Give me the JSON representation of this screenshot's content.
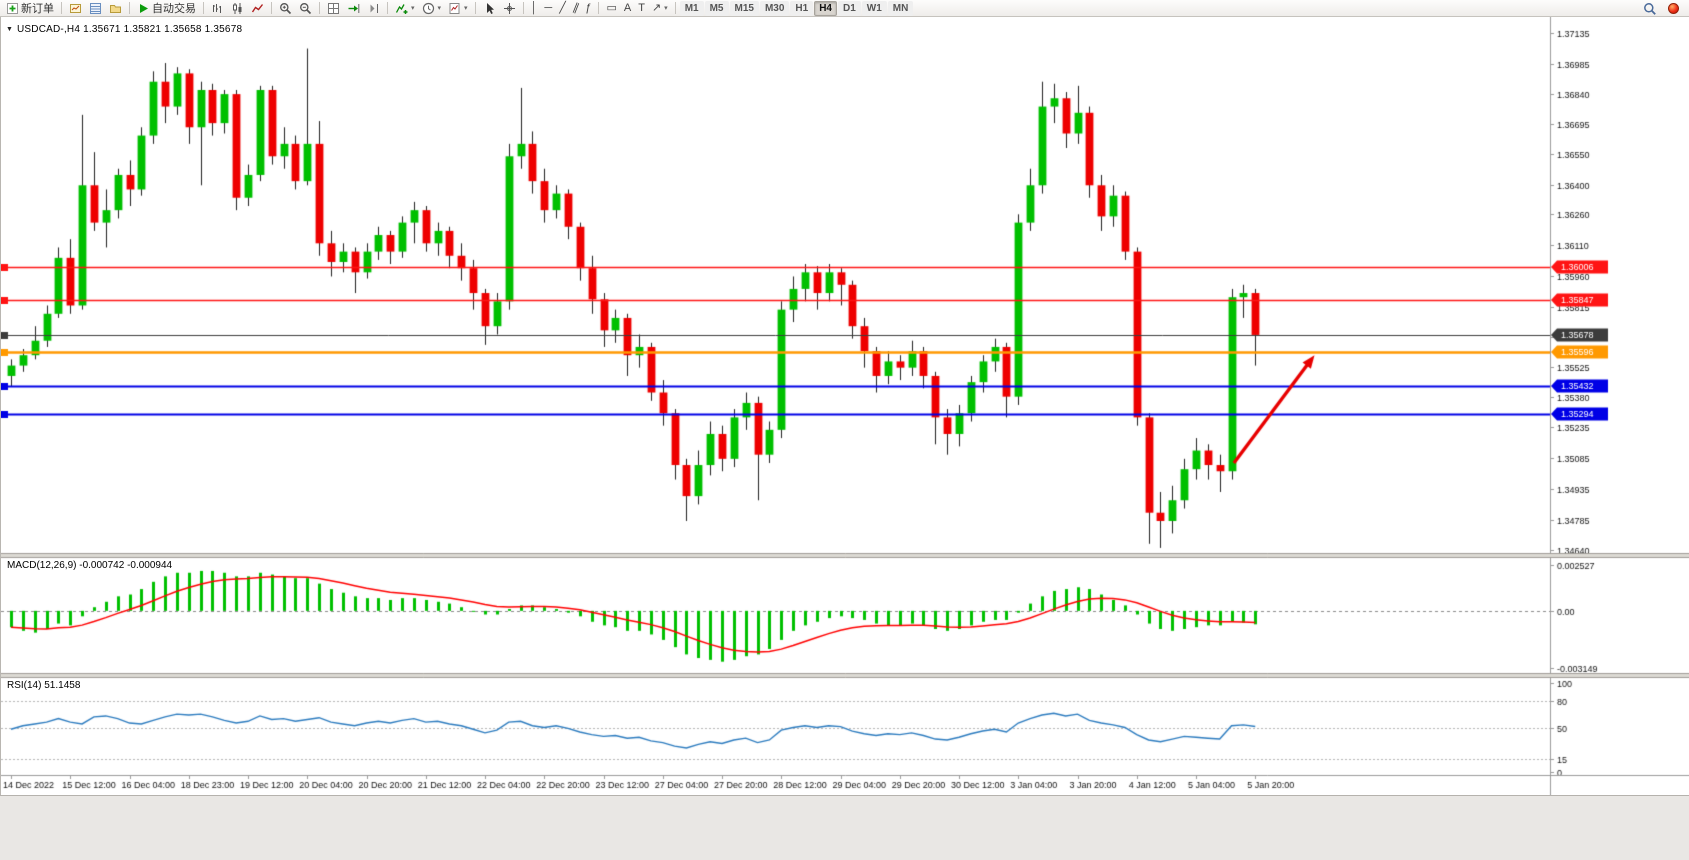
{
  "toolbar": {
    "groups": [
      [
        {
          "name": "new-order-button",
          "icon": "neworder",
          "label": "新订单"
        }
      ],
      [
        {
          "name": "market-watch-button",
          "icon": "marketwatch"
        },
        {
          "name": "data-window-button",
          "icon": "datawindow"
        },
        {
          "name": "navigator-button",
          "icon": "navigator"
        }
      ],
      [
        {
          "name": "autotrading-button",
          "icon": "play",
          "label": "自动交易"
        }
      ],
      [
        {
          "name": "bar-chart-button",
          "icon": "barchart"
        },
        {
          "name": "candlestick-chart-button",
          "icon": "candles"
        },
        {
          "name": "line-chart-button",
          "icon": "linechart"
        }
      ],
      [
        {
          "name": "zoom-in-button",
          "icon": "zoomin"
        },
        {
          "name": "zoom-out-button",
          "icon": "zoomout"
        }
      ],
      [
        {
          "name": "tile-windows-button",
          "icon": "tile"
        },
        {
          "name": "auto-scroll-button",
          "icon": "autoscroll"
        },
        {
          "name": "chart-shift-button",
          "icon": "chartshift"
        }
      ],
      [
        {
          "name": "indicators-button",
          "icon": "indicators",
          "caret": true
        },
        {
          "name": "periods-button",
          "icon": "clock",
          "caret": true
        },
        {
          "name": "templates-button",
          "icon": "template",
          "caret": true
        }
      ],
      [
        {
          "name": "cursor-button",
          "icon": "cursor"
        },
        {
          "name": "crosshair-button",
          "icon": "crosshair"
        }
      ],
      [
        {
          "name": "vertical-line-button",
          "glyph": "│"
        },
        {
          "name": "horizontal-line-button",
          "glyph": "─"
        },
        {
          "name": "trendline-button",
          "glyph": "╱"
        },
        {
          "name": "channel-button",
          "glyph": "∥",
          "tilt": true
        },
        {
          "name": "fibonacci-button",
          "glyph": "ƒ"
        }
      ],
      [
        {
          "name": "shapes-button",
          "glyph": "▭"
        },
        {
          "name": "text-tool-button",
          "glyph": "A"
        },
        {
          "name": "text-label-button",
          "glyph": "T"
        },
        {
          "name": "arrows-tool-button",
          "glyph": "↗",
          "caret": true
        }
      ]
    ],
    "timeframes": [
      "M1",
      "M5",
      "M15",
      "M30",
      "H1",
      "H4",
      "D1",
      "W1",
      "MN"
    ],
    "active_timeframe": "H4",
    "right_items": [
      {
        "name": "search-button",
        "icon": "search"
      },
      {
        "name": "community-button",
        "icon": "community"
      }
    ]
  },
  "chart": {
    "title": "USDCAD-,H4 1.35671 1.35821 1.35658 1.35678",
    "symbol": "USDCAD-",
    "period": "H4",
    "collapse_glyph": "▼",
    "ohlc_display": {
      "open": "1.35671",
      "high": "1.35821",
      "low": "1.35658",
      "close": "1.35678"
    },
    "hlines": [
      {
        "price": 1.36006,
        "label": "1.36006",
        "color": "#ff1414",
        "width": 1.6
      },
      {
        "price": 1.35847,
        "label": "1.35847",
        "color": "#ff1414",
        "width": 1.6
      },
      {
        "price": 1.35678,
        "label": "1.35678",
        "color": "#3c3c3c",
        "width": 1
      },
      {
        "price": 1.35596,
        "label": "1.35596",
        "color": "#ff9900",
        "width": 2.4
      },
      {
        "price": 1.35432,
        "label": "1.35432",
        "color": "#0000e6",
        "width": 2
      },
      {
        "price": 1.35294,
        "label": "1.35294",
        "color": "#0000e6",
        "width": 2
      }
    ],
    "annotation_arrow": {
      "from_bar": 103.2,
      "from_price": 1.3506,
      "to_bar": 110,
      "to_price": 1.3558,
      "color": "#e80000"
    }
  },
  "colors": {
    "up_candle": "#00c000",
    "down_candle": "#ee0000",
    "wick": "#202020",
    "macd_hist": "#00c000",
    "macd_signal": "#ff0000",
    "rsi_line": "#2b7bbf",
    "axis_text": "#141414",
    "grid": "#b5b5b5"
  },
  "time_axis": [
    "14 Dec 2022",
    "15 Dec 12:00",
    "16 Dec 04:00",
    "18 Dec 23:00",
    "19 Dec 12:00",
    "20 Dec 04:00",
    "20 Dec 20:00",
    "21 Dec 12:00",
    "22 Dec 04:00",
    "22 Dec 20:00",
    "23 Dec 12:00",
    "27 Dec 04:00",
    "27 Dec 20:00",
    "28 Dec 12:00",
    "29 Dec 04:00",
    "29 Dec 20:00",
    "30 Dec 12:00",
    "3 Jan 04:00",
    "3 Jan 20:00",
    "4 Jan 12:00",
    "5 Jan 04:00",
    "5 Jan 20:00"
  ],
  "chart_data": [
    {
      "type": "candlestick",
      "name": "USDCAD H4",
      "ylim": [
        1.3464,
        1.37135
      ],
      "y_ticks": [
        1.37135,
        1.36985,
        1.3684,
        1.36695,
        1.3655,
        1.364,
        1.3626,
        1.3611,
        1.3596,
        1.35815,
        1.3567,
        1.35525,
        1.3538,
        1.35235,
        1.35085,
        1.34935,
        1.34785,
        1.3464
      ],
      "ohlc": [
        [
          1.3548,
          1.3556,
          1.3543,
          1.3553
        ],
        [
          1.3553,
          1.3561,
          1.355,
          1.3558
        ],
        [
          1.3558,
          1.3572,
          1.3556,
          1.3565
        ],
        [
          1.3565,
          1.3582,
          1.3562,
          1.3578
        ],
        [
          1.3578,
          1.361,
          1.3576,
          1.3605
        ],
        [
          1.3605,
          1.3614,
          1.3578,
          1.3582
        ],
        [
          1.3582,
          1.3674,
          1.358,
          1.364
        ],
        [
          1.364,
          1.3656,
          1.3618,
          1.3622
        ],
        [
          1.3622,
          1.3638,
          1.361,
          1.3628
        ],
        [
          1.3628,
          1.3648,
          1.3624,
          1.3645
        ],
        [
          1.3645,
          1.3652,
          1.363,
          1.3638
        ],
        [
          1.3638,
          1.3668,
          1.3635,
          1.3664
        ],
        [
          1.3664,
          1.3695,
          1.366,
          1.369
        ],
        [
          1.369,
          1.3699,
          1.367,
          1.3678
        ],
        [
          1.3678,
          1.3697,
          1.3674,
          1.3694
        ],
        [
          1.3694,
          1.3696,
          1.366,
          1.3668
        ],
        [
          1.3668,
          1.369,
          1.364,
          1.3686
        ],
        [
          1.3686,
          1.3689,
          1.3664,
          1.367
        ],
        [
          1.367,
          1.3686,
          1.3665,
          1.3684
        ],
        [
          1.3684,
          1.3686,
          1.3628,
          1.3634
        ],
        [
          1.3634,
          1.365,
          1.363,
          1.3645
        ],
        [
          1.3645,
          1.3688,
          1.3642,
          1.3686
        ],
        [
          1.3686,
          1.3688,
          1.365,
          1.3654
        ],
        [
          1.3654,
          1.3668,
          1.3648,
          1.366
        ],
        [
          1.366,
          1.3664,
          1.3638,
          1.3642
        ],
        [
          1.3642,
          1.3706,
          1.364,
          1.366
        ],
        [
          1.366,
          1.3671,
          1.3606,
          1.3612
        ],
        [
          1.3612,
          1.3618,
          1.3596,
          1.3603
        ],
        [
          1.3603,
          1.3612,
          1.3598,
          1.3608
        ],
        [
          1.3608,
          1.361,
          1.3588,
          1.3598
        ],
        [
          1.3598,
          1.3612,
          1.3595,
          1.3608
        ],
        [
          1.3608,
          1.362,
          1.3604,
          1.3616
        ],
        [
          1.3616,
          1.3618,
          1.3602,
          1.3608
        ],
        [
          1.3608,
          1.3625,
          1.3605,
          1.3622
        ],
        [
          1.3622,
          1.3632,
          1.3612,
          1.3628
        ],
        [
          1.3628,
          1.363,
          1.3608,
          1.3612
        ],
        [
          1.3612,
          1.3622,
          1.3606,
          1.3618
        ],
        [
          1.3618,
          1.362,
          1.36,
          1.3606
        ],
        [
          1.3606,
          1.3612,
          1.3594,
          1.36
        ],
        [
          1.36,
          1.3604,
          1.358,
          1.3588
        ],
        [
          1.3588,
          1.359,
          1.3563,
          1.3572
        ],
        [
          1.3572,
          1.3588,
          1.3568,
          1.3584
        ],
        [
          1.3584,
          1.366,
          1.358,
          1.3654
        ],
        [
          1.3654,
          1.3687,
          1.3648,
          1.366
        ],
        [
          1.366,
          1.3666,
          1.3636,
          1.3642
        ],
        [
          1.3642,
          1.3648,
          1.3622,
          1.3628
        ],
        [
          1.3628,
          1.364,
          1.3624,
          1.3636
        ],
        [
          1.3636,
          1.3638,
          1.3614,
          1.362
        ],
        [
          1.362,
          1.3622,
          1.3594,
          1.36
        ],
        [
          1.36,
          1.3606,
          1.3578,
          1.3585
        ],
        [
          1.3585,
          1.3588,
          1.3562,
          1.357
        ],
        [
          1.357,
          1.358,
          1.3564,
          1.3576
        ],
        [
          1.3576,
          1.3578,
          1.3548,
          1.3558
        ],
        [
          1.3558,
          1.3568,
          1.3552,
          1.3562
        ],
        [
          1.3562,
          1.3564,
          1.3536,
          1.354
        ],
        [
          1.354,
          1.3546,
          1.3524,
          1.353
        ],
        [
          1.353,
          1.3532,
          1.3498,
          1.3505
        ],
        [
          1.3505,
          1.3508,
          1.3478,
          1.349
        ],
        [
          1.349,
          1.3512,
          1.3486,
          1.3505
        ],
        [
          1.3505,
          1.3526,
          1.35,
          1.352
        ],
        [
          1.352,
          1.3524,
          1.3502,
          1.3508
        ],
        [
          1.3508,
          1.3532,
          1.3504,
          1.3528
        ],
        [
          1.3528,
          1.354,
          1.3522,
          1.3535
        ],
        [
          1.3535,
          1.3538,
          1.3488,
          1.351
        ],
        [
          1.351,
          1.3526,
          1.3506,
          1.3522
        ],
        [
          1.3522,
          1.3584,
          1.3518,
          1.358
        ],
        [
          1.358,
          1.3596,
          1.3574,
          1.359
        ],
        [
          1.359,
          1.3602,
          1.3584,
          1.3598
        ],
        [
          1.3598,
          1.3601,
          1.358,
          1.3588
        ],
        [
          1.3588,
          1.3602,
          1.3584,
          1.3598
        ],
        [
          1.3598,
          1.36,
          1.3582,
          1.3592
        ],
        [
          1.3592,
          1.3594,
          1.3566,
          1.3572
        ],
        [
          1.3572,
          1.3576,
          1.3552,
          1.356
        ],
        [
          1.356,
          1.3562,
          1.354,
          1.3548
        ],
        [
          1.3548,
          1.356,
          1.3544,
          1.3555
        ],
        [
          1.3555,
          1.3558,
          1.3546,
          1.3552
        ],
        [
          1.3552,
          1.3565,
          1.3548,
          1.356
        ],
        [
          1.356,
          1.3562,
          1.3542,
          1.3548
        ],
        [
          1.3548,
          1.355,
          1.3515,
          1.3528
        ],
        [
          1.3528,
          1.3532,
          1.351,
          1.352
        ],
        [
          1.352,
          1.3534,
          1.3514,
          1.353
        ],
        [
          1.353,
          1.3548,
          1.3526,
          1.3545
        ],
        [
          1.3545,
          1.3558,
          1.354,
          1.3555
        ],
        [
          1.3555,
          1.3566,
          1.355,
          1.3562
        ],
        [
          1.3562,
          1.3564,
          1.3528,
          1.3538
        ],
        [
          1.3538,
          1.3626,
          1.3534,
          1.3622
        ],
        [
          1.3622,
          1.3648,
          1.3618,
          1.364
        ],
        [
          1.364,
          1.369,
          1.3636,
          1.3678
        ],
        [
          1.3678,
          1.3689,
          1.367,
          1.3682
        ],
        [
          1.3682,
          1.3685,
          1.3658,
          1.3665
        ],
        [
          1.3665,
          1.3688,
          1.366,
          1.3675
        ],
        [
          1.3675,
          1.3678,
          1.3634,
          1.364
        ],
        [
          1.364,
          1.3645,
          1.3618,
          1.3625
        ],
        [
          1.3625,
          1.364,
          1.362,
          1.3635
        ],
        [
          1.3635,
          1.3637,
          1.3604,
          1.3608
        ],
        [
          1.3608,
          1.361,
          1.3524,
          1.3528
        ],
        [
          1.3528,
          1.353,
          1.3467,
          1.3482
        ],
        [
          1.3482,
          1.3492,
          1.3465,
          1.3478
        ],
        [
          1.3478,
          1.3495,
          1.3472,
          1.3488
        ],
        [
          1.3488,
          1.3508,
          1.3484,
          1.3503
        ],
        [
          1.3503,
          1.3518,
          1.3498,
          1.3512
        ],
        [
          1.3512,
          1.3515,
          1.3498,
          1.3505
        ],
        [
          1.3505,
          1.351,
          1.3492,
          1.3502
        ],
        [
          1.3502,
          1.359,
          1.3498,
          1.3586
        ],
        [
          1.3586,
          1.3592,
          1.3576,
          1.3588
        ],
        [
          1.3588,
          1.359,
          1.3553,
          1.35678
        ]
      ]
    },
    {
      "type": "bar",
      "name": "MACD",
      "label": "MACD(12,26,9) -0.000742 -0.000944",
      "macd_value": -0.000742,
      "signal_value": -0.000944,
      "ylim": [
        -0.003149,
        0.002527
      ],
      "y_ticks": [
        {
          "v": 0.002527,
          "label": "0.002527"
        },
        {
          "v": 0,
          "label": "0.00"
        },
        {
          "v": -0.003149,
          "label": "-0.003149"
        }
      ],
      "values": [
        -0.0009,
        -0.0011,
        -0.0012,
        -0.001,
        -0.0007,
        -0.0008,
        -0.0003,
        0.0002,
        0.0005,
        0.0008,
        0.0009,
        0.0012,
        0.0016,
        0.0019,
        0.0021,
        0.0021,
        0.0022,
        0.0022,
        0.0021,
        0.0019,
        0.0019,
        0.0021,
        0.002,
        0.0019,
        0.0018,
        0.0018,
        0.0015,
        0.0012,
        0.001,
        0.0008,
        0.0007,
        0.0007,
        0.0006,
        0.0007,
        0.0007,
        0.0006,
        0.0005,
        0.0004,
        0.0002,
        0.0,
        -0.0002,
        -0.0002,
        0.0001,
        0.0003,
        0.0003,
        0.0002,
        0.0001,
        -0.0001,
        -0.0003,
        -0.0006,
        -0.0008,
        -0.0009,
        -0.0011,
        -0.0011,
        -0.0013,
        -0.0016,
        -0.002,
        -0.0024,
        -0.0026,
        -0.0027,
        -0.0028,
        -0.0027,
        -0.0025,
        -0.0024,
        -0.0021,
        -0.0016,
        -0.0011,
        -0.0008,
        -0.0006,
        -0.0004,
        -0.0003,
        -0.0004,
        -0.0005,
        -0.0007,
        -0.0008,
        -0.0008,
        -0.0007,
        -0.0008,
        -0.001,
        -0.0011,
        -0.001,
        -0.0008,
        -0.0006,
        -0.0005,
        -0.0005,
        -0.0001,
        0.0004,
        0.0008,
        0.0011,
        0.0012,
        0.0013,
        0.0012,
        0.0009,
        0.0006,
        0.0003,
        -0.0002,
        -0.0007,
        -0.001,
        -0.0011,
        -0.001,
        -0.0009,
        -0.0008,
        -0.0008,
        -0.0006,
        -0.00065,
        -0.000742
      ]
    },
    {
      "type": "line",
      "name": "RSI",
      "label": "RSI(14) 51.1458",
      "value": 51.1458,
      "ylim": [
        0,
        100
      ],
      "levels": [
        80,
        50,
        15
      ],
      "y_ticks": [
        {
          "v": 100,
          "label": "100"
        },
        {
          "v": 80,
          "label": "80"
        },
        {
          "v": 50,
          "label": "50"
        },
        {
          "v": 15,
          "label": "15"
        },
        {
          "v": 0,
          "label": "0"
        }
      ],
      "values": [
        48,
        52,
        54,
        56,
        60,
        56,
        54,
        62,
        63,
        60,
        55,
        54,
        58,
        62,
        65,
        64,
        65,
        62,
        58,
        55,
        57,
        63,
        59,
        60,
        57,
        59,
        61,
        56,
        54,
        52,
        55,
        57,
        55,
        58,
        60,
        56,
        57,
        54,
        52,
        48,
        44,
        47,
        56,
        57,
        52,
        50,
        52,
        49,
        45,
        42,
        40,
        41,
        38,
        39,
        35,
        33,
        29,
        27,
        31,
        34,
        32,
        36,
        38,
        33,
        36,
        47,
        50,
        52,
        50,
        52,
        51,
        46,
        43,
        41,
        43,
        42,
        44,
        41,
        37,
        36,
        39,
        43,
        46,
        48,
        45,
        55,
        60,
        64,
        66,
        63,
        65,
        58,
        55,
        53,
        50,
        42,
        36,
        34,
        37,
        40,
        39,
        38,
        37,
        52,
        53,
        51.1
      ]
    }
  ]
}
